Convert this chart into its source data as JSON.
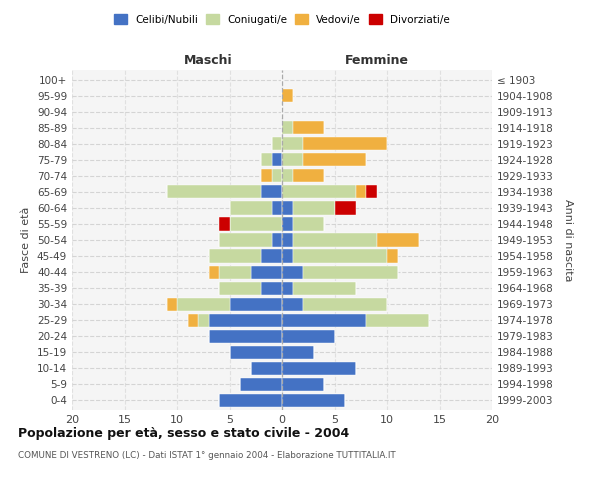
{
  "age_groups": [
    "0-4",
    "5-9",
    "10-14",
    "15-19",
    "20-24",
    "25-29",
    "30-34",
    "35-39",
    "40-44",
    "45-49",
    "50-54",
    "55-59",
    "60-64",
    "65-69",
    "70-74",
    "75-79",
    "80-84",
    "85-89",
    "90-94",
    "95-99",
    "100+"
  ],
  "birth_years": [
    "1999-2003",
    "1994-1998",
    "1989-1993",
    "1984-1988",
    "1979-1983",
    "1974-1978",
    "1969-1973",
    "1964-1968",
    "1959-1963",
    "1954-1958",
    "1949-1953",
    "1944-1948",
    "1939-1943",
    "1934-1938",
    "1929-1933",
    "1924-1928",
    "1919-1923",
    "1914-1918",
    "1909-1913",
    "1904-1908",
    "≤ 1903"
  ],
  "colors": {
    "celibi": "#4472c4",
    "coniugati": "#c6d9a0",
    "vedovi": "#f0b040",
    "divorziati": "#cc0000"
  },
  "males": {
    "celibi": [
      6,
      4,
      3,
      5,
      7,
      7,
      5,
      2,
      3,
      2,
      1,
      0,
      1,
      2,
      0,
      1,
      0,
      0,
      0,
      0,
      0
    ],
    "coniugati": [
      0,
      0,
      0,
      0,
      0,
      1,
      5,
      4,
      3,
      5,
      5,
      5,
      4,
      9,
      1,
      1,
      1,
      0,
      0,
      0,
      0
    ],
    "vedovi": [
      0,
      0,
      0,
      0,
      0,
      1,
      1,
      0,
      1,
      0,
      0,
      0,
      0,
      0,
      1,
      0,
      0,
      0,
      0,
      0,
      0
    ],
    "divorziati": [
      0,
      0,
      0,
      0,
      0,
      0,
      0,
      0,
      0,
      0,
      0,
      1,
      0,
      0,
      0,
      0,
      0,
      0,
      0,
      0,
      0
    ]
  },
  "females": {
    "nubili": [
      6,
      4,
      7,
      3,
      5,
      8,
      2,
      1,
      2,
      1,
      1,
      1,
      1,
      0,
      0,
      0,
      0,
      0,
      0,
      0,
      0
    ],
    "coniugate": [
      0,
      0,
      0,
      0,
      0,
      6,
      8,
      6,
      9,
      9,
      8,
      3,
      4,
      7,
      1,
      2,
      2,
      1,
      0,
      0,
      0
    ],
    "vedove": [
      0,
      0,
      0,
      0,
      0,
      0,
      0,
      0,
      0,
      1,
      4,
      0,
      0,
      1,
      3,
      6,
      8,
      3,
      0,
      1,
      0
    ],
    "divorziate": [
      0,
      0,
      0,
      0,
      0,
      0,
      0,
      0,
      0,
      0,
      0,
      0,
      2,
      1,
      0,
      0,
      0,
      0,
      0,
      0,
      0
    ]
  },
  "xlim": [
    -20,
    20
  ],
  "xticks": [
    -20,
    -15,
    -10,
    -5,
    0,
    5,
    10,
    15,
    20
  ],
  "xticklabels": [
    "20",
    "15",
    "10",
    "5",
    "0",
    "5",
    "10",
    "15",
    "20"
  ],
  "title": "Popolazione per età, sesso e stato civile - 2004",
  "subtitle": "COMUNE DI VESTRENO (LC) - Dati ISTAT 1° gennaio 2004 - Elaborazione TUTTITALIA.IT",
  "ylabel_left": "Fasce di età",
  "ylabel_right": "Anni di nascita",
  "maschi_label": "Maschi",
  "femmine_label": "Femmine",
  "bg_color": "#f5f5f5",
  "grid_color": "#cccccc"
}
